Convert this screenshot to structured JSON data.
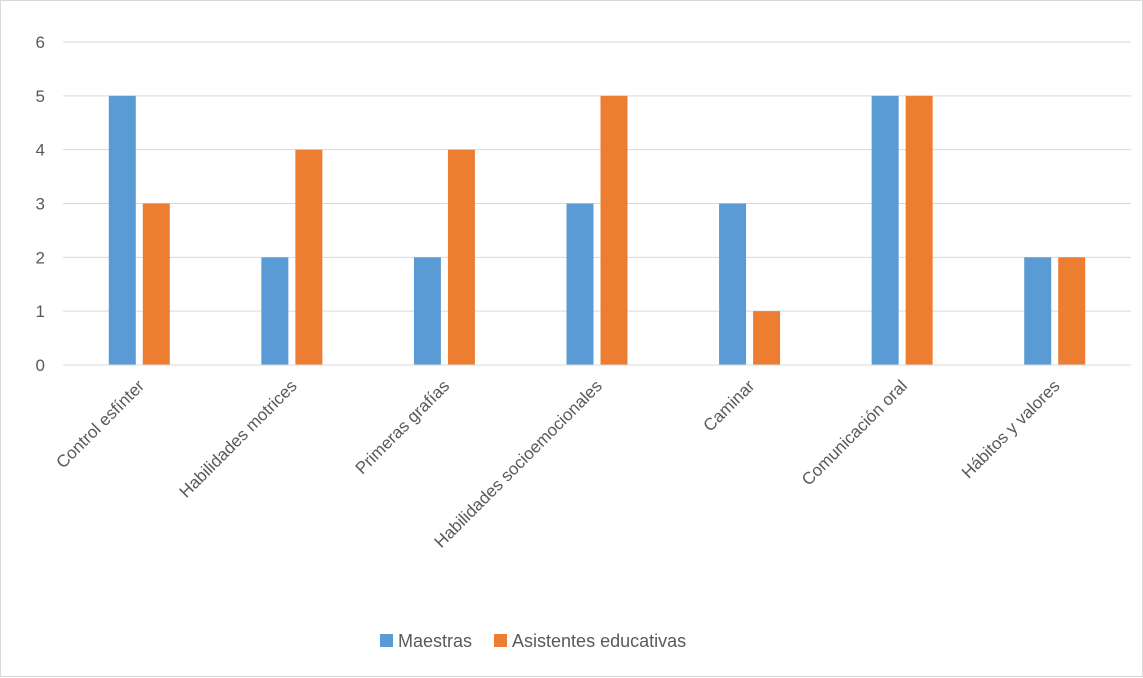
{
  "chart_data": {
    "type": "bar",
    "categories": [
      "Control esfínter",
      "Habilidades motrices",
      "Primeras grafías",
      "Habilidades socioemocionales",
      "Caminar",
      "Comunicación oral",
      "Hábitos y valores"
    ],
    "series": [
      {
        "name": "Maestras",
        "values": [
          5,
          2,
          2,
          3,
          3,
          5,
          2
        ],
        "color": "#5b9bd5"
      },
      {
        "name": "Asistentes educativas",
        "values": [
          3,
          4,
          4,
          5,
          1,
          5,
          2
        ],
        "color": "#ed7d31"
      }
    ],
    "ylim": [
      0,
      6
    ],
    "yticks": [
      "0",
      "1",
      "2",
      "3",
      "4",
      "5",
      "6"
    ],
    "grid": true,
    "legend": "bottom",
    "title": "",
    "xlabel": "",
    "ylabel": ""
  }
}
